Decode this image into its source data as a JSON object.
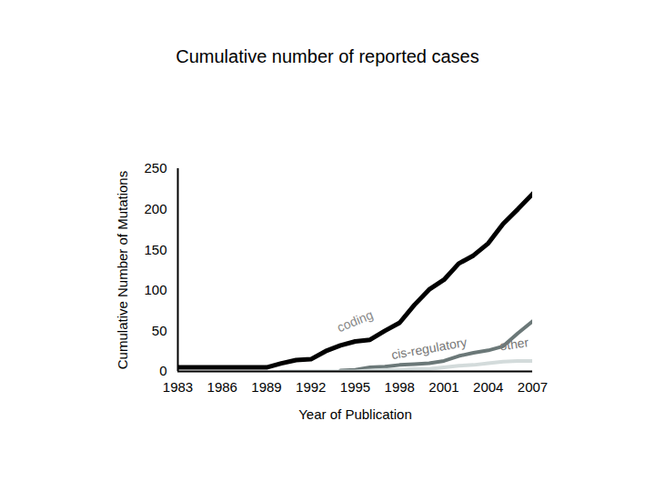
{
  "chart_data": {
    "type": "line",
    "title": "Cumulative number of reported cases",
    "x_label": "Year of Publication",
    "y_label": "Cumulative Number of Mutations",
    "x": [
      1983,
      1984,
      1985,
      1986,
      1987,
      1988,
      1989,
      1990,
      1991,
      1992,
      1993,
      1994,
      1995,
      1996,
      1997,
      1998,
      1999,
      2000,
      2001,
      2002,
      2003,
      2004,
      2005,
      2006,
      2007
    ],
    "series": [
      {
        "name": "coding",
        "color": "#000000",
        "values": [
          5,
          5,
          5,
          5,
          5,
          5,
          5,
          10,
          14,
          15,
          25,
          32,
          37,
          39,
          50,
          60,
          82,
          101,
          113,
          133,
          143,
          158,
          182,
          200,
          219
        ]
      },
      {
        "name": "cis-regulatory",
        "color": "#6b7878",
        "values": [
          null,
          null,
          null,
          null,
          null,
          null,
          null,
          null,
          null,
          null,
          null,
          1,
          2,
          5,
          6,
          8,
          9,
          10,
          13,
          19,
          23,
          26,
          31,
          47,
          62
        ]
      },
      {
        "name": "other",
        "color": "#d3dbdb",
        "values": [
          null,
          null,
          null,
          null,
          null,
          null,
          null,
          0,
          0,
          0,
          0,
          0,
          0,
          1,
          2,
          2,
          3,
          3,
          5,
          7,
          8,
          10,
          12,
          13,
          13
        ]
      }
    ],
    "xlim": [
      1983,
      2007
    ],
    "xticks": [
      1983,
      1986,
      1989,
      1992,
      1995,
      1998,
      2001,
      2004,
      2007
    ],
    "ylim": [
      0,
      250
    ],
    "yticks": [
      0,
      50,
      100,
      150,
      200,
      250
    ],
    "grid": false
  }
}
